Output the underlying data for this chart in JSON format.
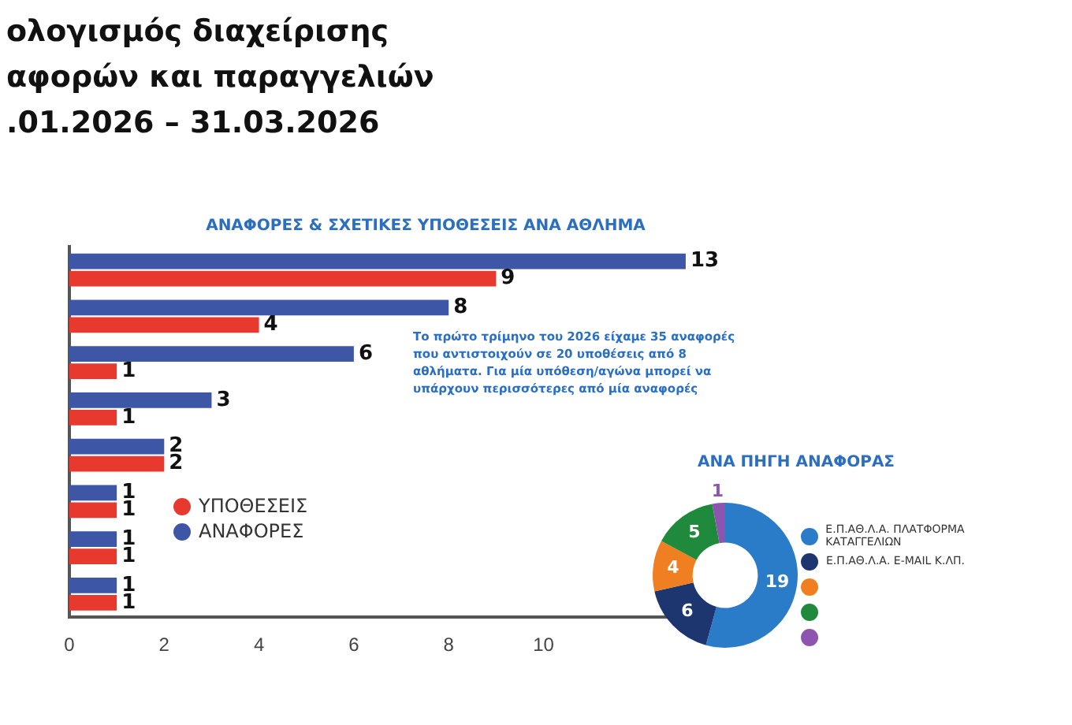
{
  "chart_data": [
    {
      "type": "bar",
      "title": "ολογισμός διαχείρισης\nαφορών και παραγγελιών\n.01.2026 – 31.03.2026",
      "subtitle": "ΑΝΑΦΟΡΕΣ  & ΣΧΕΤΙΚΕΣ ΥΠΟΘΕΣΕΙΣ ΑΝΑ ΑΘΛΗΜΑ",
      "orientation": "horizontal",
      "categories": [
        null,
        null,
        null,
        null,
        null,
        null,
        null,
        null
      ],
      "series": [
        {
          "name": "ΑΝΑΦΟΡΕΣ",
          "color": "#3d56a6",
          "values": [
            13,
            8,
            6,
            3,
            2,
            1,
            1,
            1
          ]
        },
        {
          "name": "ΥΠΟΘΕΣΕΙΣ",
          "color": "#e8392f",
          "values": [
            9,
            4,
            1,
            1,
            2,
            1,
            1,
            1
          ]
        }
      ],
      "xlim": [
        0,
        13.5
      ],
      "xticks": [
        0,
        2,
        4,
        6,
        8,
        10
      ],
      "grid": false,
      "legend": "bottom",
      "data_labels": true,
      "annotations": [
        "Το πρώτο τρίμηνο του 2026 είχαμε 35 αναφορές που αντιστοιχούν σε 20 υποθέσεις από 8 αθλήματα. Για μία υπόθεση/αγώνα μπορεί να υπάρχουν περισσότερες από μία αναφορές"
      ]
    },
    {
      "type": "donut",
      "title": "ΑΝΑ ΠΗΓΗ ΑΝΑΦΟΡΑΣ",
      "categories": [
        "Ε.Π.ΑΘ.Λ.Α. ΠΛΑΤΦΟΡΜΑ ΚΑΤΑΓΓΕΛΙΩΝ",
        "Ε.Π.ΑΘ.Λ.Α. E-MAIL Κ.ΛΠ.",
        null,
        null,
        null
      ],
      "values": [
        19,
        6,
        4,
        5,
        1
      ],
      "colors": [
        "#2a7bc8",
        "#1d3670",
        "#f07f22",
        "#1f8a3c",
        "#8e55b0"
      ],
      "legend": "right",
      "data_labels": true
    }
  ]
}
